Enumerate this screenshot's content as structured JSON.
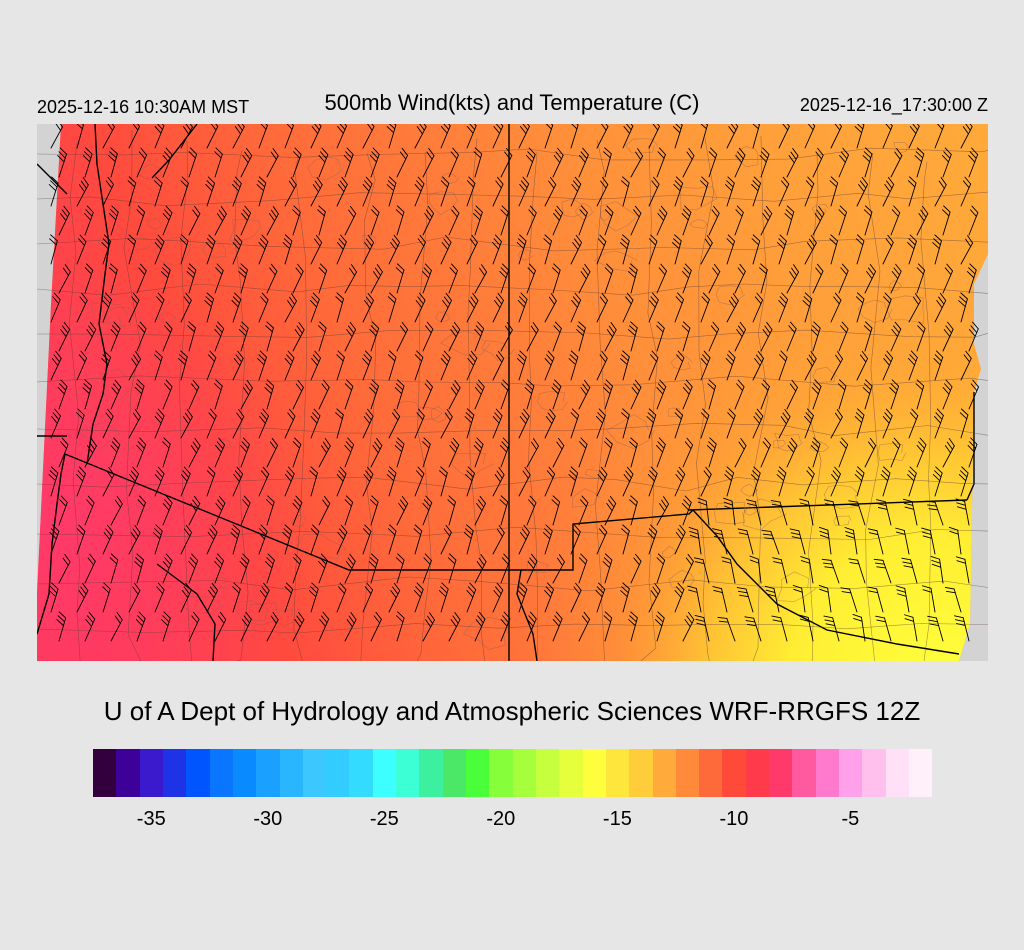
{
  "header": {
    "local_time": "2025-12-16 10:30AM MST",
    "title": "500mb Wind(kts) and Temperature (C)",
    "utc_time": "2025-12-16_17:30:00 Z"
  },
  "map": {
    "field": "500mb temperature (C) with wind barbs (kts)",
    "region": "Southwestern United States",
    "temperature_pattern": [
      {
        "area": "west / Nevada / California",
        "approx_temp_c": -9.5,
        "color": "#ff3d4d"
      },
      {
        "area": "central Utah / Arizona",
        "approx_temp_c": -11.5,
        "color": "#ff6a3d"
      },
      {
        "area": "Colorado / New Mexico",
        "approx_temp_c": -12.5,
        "color": "#ff9a3a"
      },
      {
        "area": "southeast New Mexico / west Texas",
        "approx_temp_c": -15,
        "color": "#ffee33"
      }
    ],
    "wind_barb_direction": "southwesterly",
    "colors": {
      "missing": "#d3d3d3",
      "boundary": "#000000",
      "terrain_contour": "#8a5a52"
    }
  },
  "footer": {
    "credit": "U of A Dept of Hydrology and Atmospheric Sciences WRF-RRGFS 12Z"
  },
  "colorbar": {
    "colors": [
      "#33003d",
      "#3d0099",
      "#3a1acc",
      "#1f33e6",
      "#0055ff",
      "#0a75ff",
      "#0a8aff",
      "#1aa0ff",
      "#2ab5ff",
      "#3cc8ff",
      "#33ccff",
      "#33dcff",
      "#3dffff",
      "#3dffd6",
      "#3df0a0",
      "#4ae866",
      "#4aff3a",
      "#86ff3a",
      "#a6ff3d",
      "#c6ff3d",
      "#e6ff3d",
      "#ffff3d",
      "#ffe63d",
      "#ffcc3a",
      "#ffaa3a",
      "#ff8a3a",
      "#ff6a3a",
      "#ff4a3a",
      "#ff3a4a",
      "#ff3a6a",
      "#ff5aa0",
      "#ff7acd",
      "#ffa0ea",
      "#ffc0ee",
      "#ffe0f6",
      "#fff0fa"
    ],
    "ticks": [
      "-35",
      "-30",
      "-25",
      "-20",
      "-15",
      "-10",
      "-5"
    ],
    "tick_values": [
      -35,
      -30,
      -25,
      -20,
      -15,
      -10,
      -5
    ],
    "range": [
      -37.5,
      -1.5
    ]
  }
}
